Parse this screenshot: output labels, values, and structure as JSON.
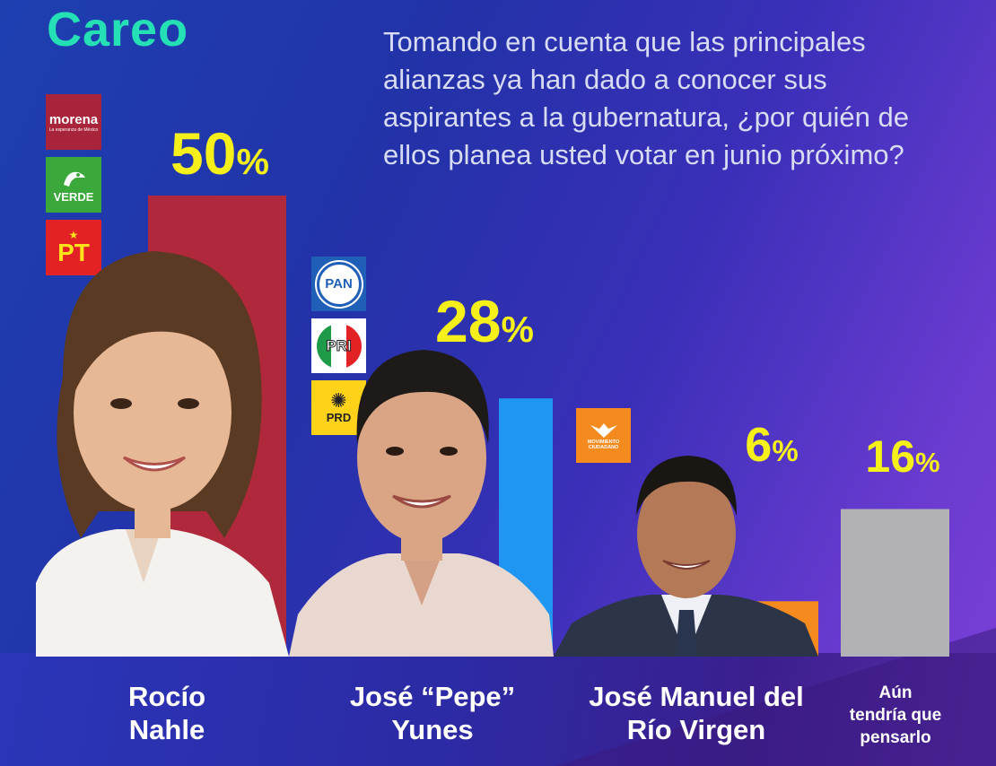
{
  "header": {
    "title": "Careo",
    "question": "Tomando en cuenta que las principales alianzas ya han dado a conocer sus aspirantes a la gubernatura, ¿por quién de ellos planea usted votar en junio próximo?"
  },
  "logos": {
    "morena_name": "morena",
    "morena_tagline": "La esperanza de México",
    "verde": "VERDE",
    "pt": "PT",
    "pan": "PAN",
    "pri": "PRI",
    "prd": "PRD",
    "mc": "MOVIMIENTO CIUDADANO"
  },
  "colors": {
    "title": "#24e0b4",
    "value_labels": "#f6f01a",
    "nahle_bar": "#b0283c",
    "yunes_bar": "#1e96f2",
    "rio_bar": "#f58a1f",
    "undecided_bar": "#b2b2b6"
  },
  "chart_data": {
    "type": "bar",
    "categories": [
      "Rocío Nahle",
      "José “Pepe” Yunes",
      "José Manuel del Río Virgen",
      "Aún tendría que pensarlo"
    ],
    "values": [
      50,
      28,
      6,
      16
    ],
    "value_labels": [
      "50%",
      "28%",
      "6%",
      "16%"
    ],
    "unit": "%",
    "ylim": [
      0,
      50
    ],
    "name_lines": [
      [
        "Rocío",
        "Nahle"
      ],
      [
        "José “Pepe”",
        "Yunes"
      ],
      [
        "José Manuel del",
        "Río Virgen"
      ],
      [
        "Aún",
        "tendría que",
        "pensarlo"
      ]
    ],
    "title": "",
    "xlabel": "",
    "ylabel": ""
  }
}
